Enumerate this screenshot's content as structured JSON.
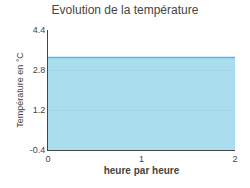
{
  "chart_data": {
    "type": "area",
    "title": "Evolution de la température",
    "xlabel": "heure par heure",
    "ylabel": "Température en °C",
    "x": [
      0,
      2
    ],
    "values": [
      3.3,
      3.3
    ],
    "color": "#55bbdd",
    "xlim": [
      0,
      2
    ],
    "ylim": [
      -0.4,
      4.4
    ],
    "xticks": [
      0,
      1,
      2
    ],
    "yticks": [
      -0.4,
      1.2,
      2.8,
      4.4
    ],
    "grid": true
  }
}
